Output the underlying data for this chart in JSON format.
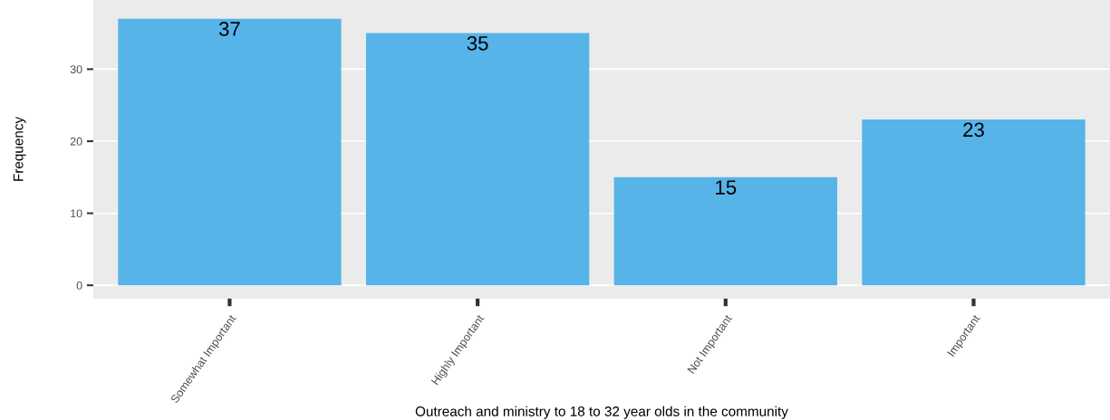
{
  "chart_data": {
    "type": "bar",
    "xlabel": "Outreach and ministry to 18 to 32 year olds in the community",
    "ylabel": "Frequency",
    "categories": [
      "Somewhat Important",
      "Highly Important",
      "Not Important",
      "Important"
    ],
    "values": [
      37,
      35,
      15,
      23
    ],
    "color": "#56b4e9",
    "ylim": [
      -1.85,
      39.6
    ],
    "yticks": [
      0,
      10,
      20,
      30
    ],
    "grid": "y",
    "data_labels": true
  }
}
